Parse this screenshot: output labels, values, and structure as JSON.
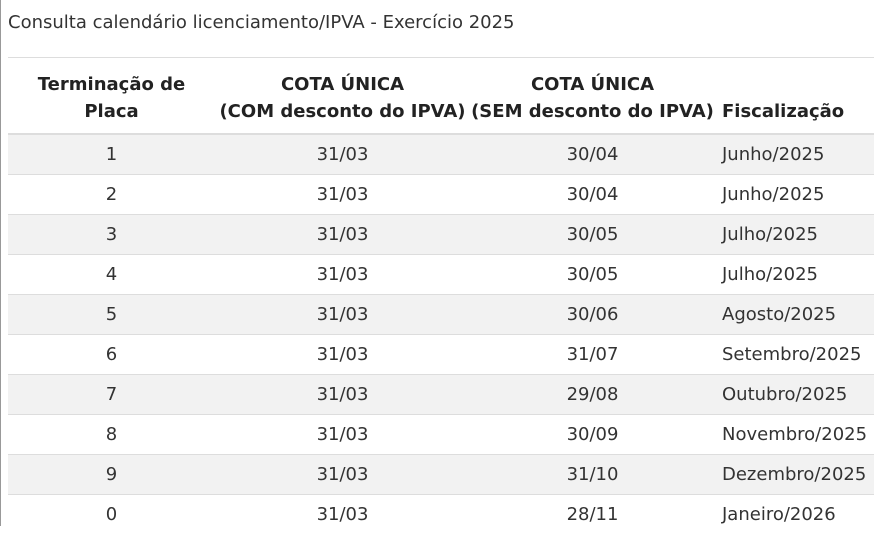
{
  "title": "Consulta calendário licenciamento/IPVA - Exercício 2025",
  "table": {
    "header": [
      [
        "Terminação de Placa"
      ],
      [
        "COTA ÚNICA",
        "(COM desconto do IPVA)"
      ],
      [
        "COTA ÚNICA",
        "(SEM desconto do IPVA)"
      ],
      [
        "Fiscalização"
      ]
    ],
    "rows": [
      [
        "1",
        "31/03",
        "30/04",
        "Junho/2025"
      ],
      [
        "2",
        "31/03",
        "30/04",
        "Junho/2025"
      ],
      [
        "3",
        "31/03",
        "30/05",
        "Julho/2025"
      ],
      [
        "4",
        "31/03",
        "30/05",
        "Julho/2025"
      ],
      [
        "5",
        "31/03",
        "30/06",
        "Agosto/2025"
      ],
      [
        "6",
        "31/03",
        "31/07",
        "Setembro/2025"
      ],
      [
        "7",
        "31/03",
        "29/08",
        "Outubro/2025"
      ],
      [
        "8",
        "31/03",
        "30/09",
        "Novembro/2025"
      ],
      [
        "9",
        "31/03",
        "31/10",
        "Dezembro/2025"
      ],
      [
        "0",
        "31/03",
        "28/11",
        "Janeiro/2026"
      ]
    ]
  }
}
